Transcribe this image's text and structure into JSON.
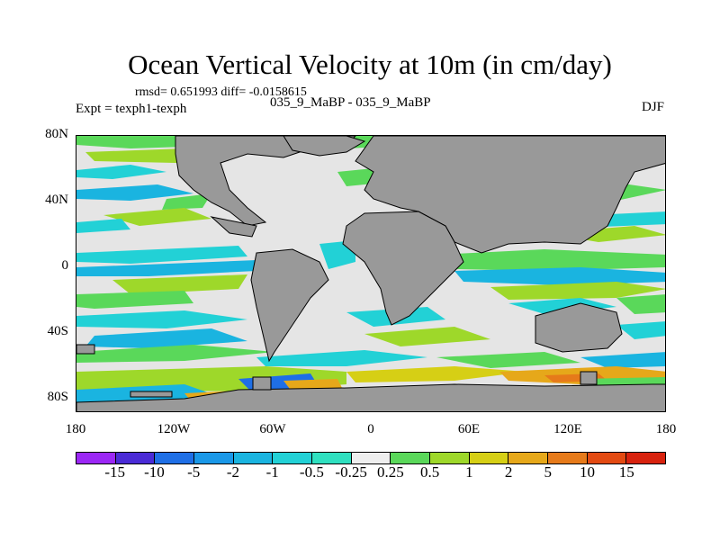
{
  "title": "Ocean Vertical Velocity at 10m (in cm/day)",
  "stats": "rmsd= 0.651993 diff= -0.0158615",
  "experiment": "Expt = texph1-texph",
  "experiment_ids": "035_9_MaBP - 035_9_MaBP",
  "season": "DJF",
  "map": {
    "lon_ticks": [
      "180",
      "120W",
      "60W",
      "0",
      "60E",
      "120E",
      "180"
    ],
    "lat_ticks": [
      "80N",
      "40N",
      "0",
      "40S",
      "80S"
    ],
    "land_color": "#999999",
    "neutral_color": "#e5e5e5"
  },
  "colorbar": {
    "labels": [
      "-15",
      "-10",
      "-5",
      "-2",
      "-1",
      "-0.5",
      "-0.25",
      "0.25",
      "0.5",
      "1",
      "2",
      "5",
      "10",
      "15"
    ],
    "colors": [
      "#9b27f5",
      "#4a2bd6",
      "#1f6fe6",
      "#1a98e8",
      "#1ab4e0",
      "#22d1d6",
      "#2fe0c0",
      "#eeeeee",
      "#5ad85a",
      "#9ed82a",
      "#d6cf15",
      "#e6a81a",
      "#e67a1a",
      "#e34a12",
      "#d8220e"
    ]
  }
}
